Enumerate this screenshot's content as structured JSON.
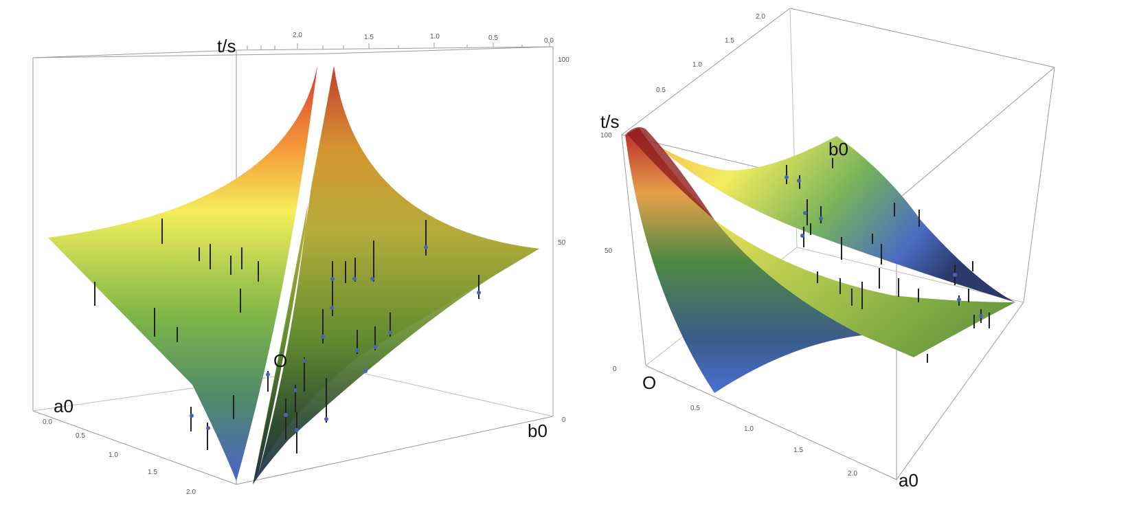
{
  "chart_data": [
    {
      "type": "surface3d",
      "title": "",
      "axes": {
        "a0": {
          "label": "a0",
          "ticks": [
            "0.0",
            "0.5",
            "1.0",
            "1.5",
            "2.0"
          ]
        },
        "b0": {
          "label": "b0",
          "ticks": [
            "2.0",
            "1.5",
            "1.0",
            "0.5",
            "0.0"
          ]
        },
        "t": {
          "label": "t/s",
          "ticks": [
            "100",
            "50",
            "0"
          ]
        }
      },
      "origin_label": "O",
      "colormap": "blue-green-yellow-red",
      "surface_peak": 100
    },
    {
      "type": "surface3d",
      "title": "",
      "axes": {
        "a0": {
          "label": "a0",
          "ticks": [
            "0.5",
            "1.0",
            "1.5",
            "2.0"
          ]
        },
        "b0": {
          "label": "b0",
          "ticks": [
            "2.0",
            "1.5",
            "1.0",
            "0.5"
          ]
        },
        "t": {
          "label": "t/s",
          "ticks": [
            "100",
            "50",
            "0"
          ]
        }
      },
      "origin_label": "O",
      "colormap": "blue-green-yellow-red",
      "surface_peak": 100
    }
  ]
}
